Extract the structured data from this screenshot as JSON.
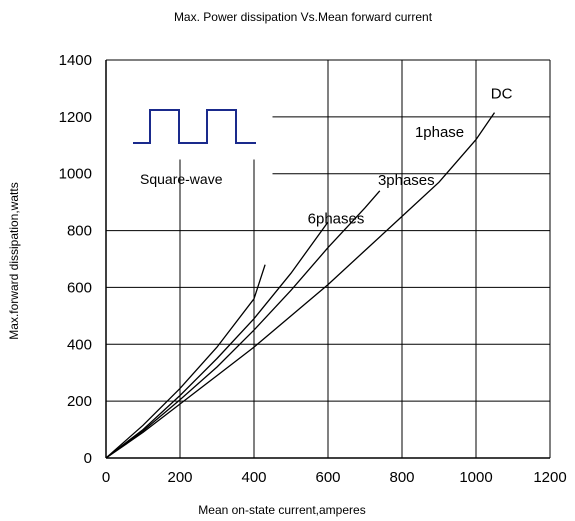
{
  "chart_data": {
    "type": "line",
    "title": "Max. Power dissipation  Vs.Mean  forward current",
    "xlabel": "Mean on-state  current,amperes",
    "ylabel": "Max.forward dissipation,watts",
    "xlim": [
      0,
      1200
    ],
    "ylim": [
      0,
      1400
    ],
    "x_ticks": [
      "0",
      "200",
      "400",
      "600",
      "800",
      "1000",
      "1200"
    ],
    "y_ticks": [
      "0",
      "200",
      "400",
      "600",
      "800",
      "1000",
      "1200",
      "1400"
    ],
    "grid": true,
    "series": [
      {
        "name": "DC",
        "x": [
          0,
          100,
          200,
          300,
          400,
          500,
          600,
          700,
          800,
          900,
          1000,
          1050
        ],
        "y": [
          0,
          90,
          190,
          290,
          390,
          500,
          610,
          730,
          850,
          970,
          1120,
          1215
        ]
      },
      {
        "name": "1phase",
        "x": [
          0,
          100,
          200,
          300,
          400,
          500,
          600,
          700,
          740
        ],
        "y": [
          0,
          95,
          205,
          320,
          450,
          590,
          740,
          880,
          940
        ]
      },
      {
        "name": "3phases",
        "x": [
          0,
          100,
          200,
          300,
          400,
          500,
          600
        ],
        "y": [
          0,
          100,
          220,
          350,
          490,
          650,
          830
        ]
      },
      {
        "name": "6phases",
        "x": [
          0,
          100,
          200,
          300,
          400,
          430
        ],
        "y": [
          0,
          115,
          245,
          390,
          560,
          680
        ]
      }
    ],
    "annotations": [
      {
        "text": "DC",
        "x": 1040,
        "y": 1265
      },
      {
        "text": "1phase",
        "x": 835,
        "y": 1130
      },
      {
        "text": "3phases",
        "x": 735,
        "y": 960
      },
      {
        "text": "6phases",
        "x": 545,
        "y": 825
      }
    ],
    "inset": {
      "label": "Square-wave"
    }
  }
}
